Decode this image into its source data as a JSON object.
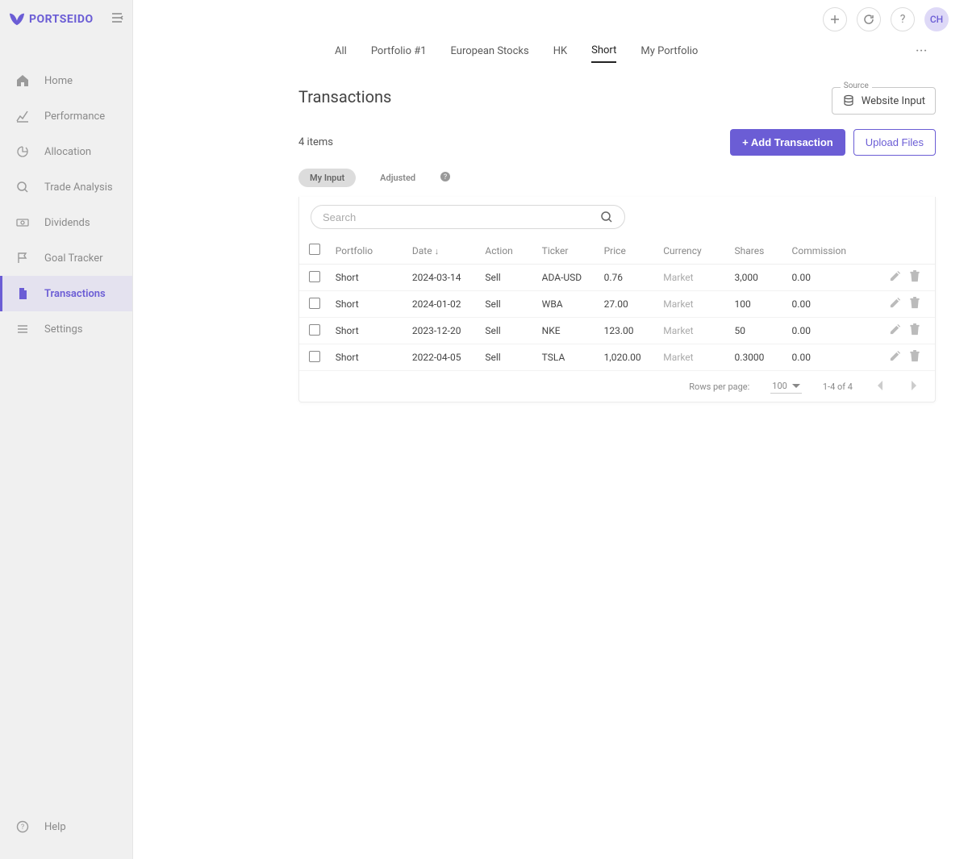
{
  "brand": {
    "name": "PORTSEIDO",
    "color": "#6b5dd5"
  },
  "sidebar": {
    "nav": [
      {
        "icon": "home",
        "label": "Home"
      },
      {
        "icon": "chart",
        "label": "Performance"
      },
      {
        "icon": "pie",
        "label": "Allocation"
      },
      {
        "icon": "search",
        "label": "Trade Analysis"
      },
      {
        "icon": "money",
        "label": "Dividends"
      },
      {
        "icon": "flag",
        "label": "Goal Tracker"
      },
      {
        "icon": "doc",
        "label": "Transactions",
        "active": true
      },
      {
        "icon": "menu",
        "label": "Settings"
      }
    ],
    "help": "Help"
  },
  "topbar": {
    "avatar": "CH"
  },
  "tabs": [
    {
      "label": "All"
    },
    {
      "label": "Portfolio #1"
    },
    {
      "label": "European Stocks"
    },
    {
      "label": "HK"
    },
    {
      "label": "Short",
      "active": true
    },
    {
      "label": "My Portfolio"
    }
  ],
  "page": {
    "title": "Transactions",
    "source_label": "Source",
    "source_value": "Website Input",
    "items_count": "4 items",
    "add_btn": "+ Add Transaction",
    "upload_btn": "Upload Files"
  },
  "filters": {
    "my_input": "My Input",
    "adjusted": "Adjusted"
  },
  "search": {
    "placeholder": "Search"
  },
  "table": {
    "columns": [
      "Portfolio",
      "Date",
      "Action",
      "Ticker",
      "Price",
      "Currency",
      "Shares",
      "Commission"
    ],
    "sort_col": "Date",
    "sort_dir": "desc",
    "rows": [
      {
        "portfolio": "Short",
        "date": "2024-03-14",
        "action": "Sell",
        "ticker": "ADA-USD",
        "price": "0.76",
        "currency": "Market",
        "shares": "3,000",
        "commission": "0.00"
      },
      {
        "portfolio": "Short",
        "date": "2024-01-02",
        "action": "Sell",
        "ticker": "WBA",
        "price": "27.00",
        "currency": "Market",
        "shares": "100",
        "commission": "0.00"
      },
      {
        "portfolio": "Short",
        "date": "2023-12-20",
        "action": "Sell",
        "ticker": "NKE",
        "price": "123.00",
        "currency": "Market",
        "shares": "50",
        "commission": "0.00"
      },
      {
        "portfolio": "Short",
        "date": "2022-04-05",
        "action": "Sell",
        "ticker": "TSLA",
        "price": "1,020.00",
        "currency": "Market",
        "shares": "0.3000",
        "commission": "0.00"
      }
    ]
  },
  "pager": {
    "rows_per_page_label": "Rows per page:",
    "rows_per_page": "100",
    "range": "1-4 of 4"
  }
}
